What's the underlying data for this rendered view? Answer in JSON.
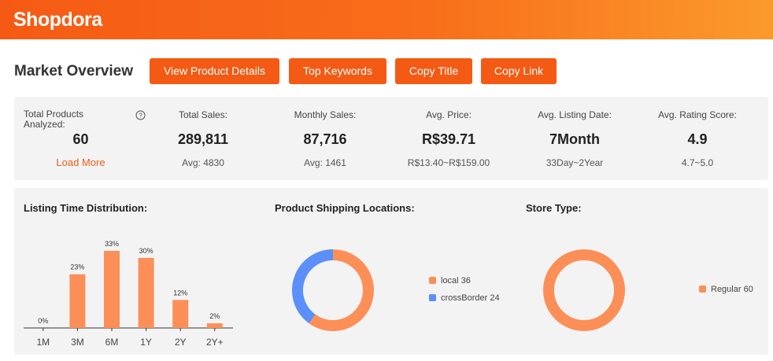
{
  "app": {
    "logo_text": "Shopdora",
    "brand_color": "#f45a14"
  },
  "overview": {
    "title": "Market Overview",
    "buttons": {
      "view_details": "View Product Details",
      "top_keywords": "Top Keywords",
      "copy_title": "Copy Title",
      "copy_link": "Copy Link"
    }
  },
  "stats": {
    "total_products": {
      "label": "Total Products Analyzed:",
      "value": "60",
      "action": "Load More",
      "help_icon": "question-circle-icon"
    },
    "total_sales": {
      "label": "Total Sales:",
      "value": "289,811",
      "sub": "Avg: 4830"
    },
    "monthly_sales": {
      "label": "Monthly Sales:",
      "value": "87,716",
      "sub": "Avg: 1461"
    },
    "avg_price": {
      "label": "Avg. Price:",
      "value": "R$39.71",
      "sub": "R$13.40~R$159.00"
    },
    "avg_listing_date": {
      "label": "Avg. Listing Date:",
      "value": "7Month",
      "sub": "33Day~2Year"
    },
    "avg_rating": {
      "label": "Avg. Rating Score:",
      "value": "4.9",
      "sub": "4.7~5.0"
    }
  },
  "charts": {
    "listing_time": {
      "title": "Listing Time Distribution:"
    },
    "shipping": {
      "title": "Product Shipping Locations:"
    },
    "store_type": {
      "title": "Store Type:"
    }
  },
  "chart_data": [
    {
      "type": "bar",
      "title": "Listing Time Distribution:",
      "categories": [
        "1M",
        "3M",
        "6M",
        "1Y",
        "2Y",
        "2Y+"
      ],
      "values": [
        0,
        23,
        33,
        30,
        12,
        2
      ],
      "labels": [
        "0%",
        "23%",
        "33%",
        "30%",
        "12%",
        "2%"
      ],
      "ylim": [
        0,
        33
      ],
      "color": "#fc8f57"
    },
    {
      "type": "pie",
      "title": "Product Shipping Locations:",
      "style": "donut",
      "slices": [
        {
          "name": "local",
          "value": 36,
          "legend": "local 36",
          "color": "#fc8f57"
        },
        {
          "name": "crossBorder",
          "value": 24,
          "legend": "crossBorder 24",
          "color": "#5b8ff9"
        }
      ]
    },
    {
      "type": "pie",
      "title": "Store Type:",
      "style": "donut",
      "slices": [
        {
          "name": "Regular",
          "value": 60,
          "legend": "Regular 60",
          "color": "#fc8f57"
        }
      ]
    }
  ]
}
